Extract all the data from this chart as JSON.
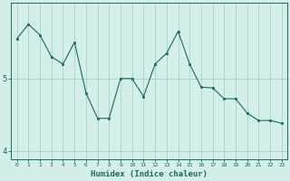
{
  "x": [
    0,
    1,
    2,
    3,
    4,
    5,
    6,
    7,
    8,
    9,
    10,
    11,
    12,
    13,
    14,
    15,
    16,
    17,
    18,
    19,
    20,
    21,
    22,
    23
  ],
  "y": [
    5.55,
    5.75,
    5.6,
    5.3,
    5.2,
    5.5,
    4.8,
    4.45,
    4.45,
    5.0,
    5.0,
    4.75,
    5.2,
    5.35,
    5.65,
    5.2,
    4.88,
    4.87,
    4.72,
    4.72,
    4.52,
    4.42,
    4.42,
    4.38
  ],
  "line_color": "#1a6b5a",
  "marker_color": "#1a6b5a",
  "bg_color": "#d4eeeb",
  "grid_color": "#a8cec8",
  "xlabel": "Humidex (Indice chaleur)",
  "yticks": [
    4,
    5
  ],
  "xlim": [
    -0.5,
    23.5
  ],
  "ylim": [
    3.88,
    6.05
  ],
  "title": ""
}
